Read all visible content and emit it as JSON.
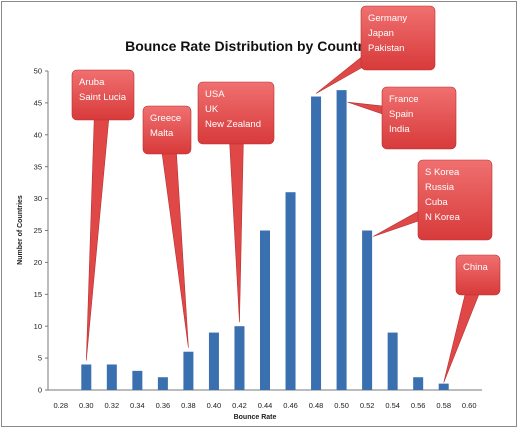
{
  "chart_data": {
    "type": "bar",
    "title": "Bounce Rate Distribution by Country",
    "xlabel": "Bounce Rate",
    "ylabel": "Number of Countries",
    "categories": [
      "0.28",
      "0.30",
      "0.32",
      "0.34",
      "0.36",
      "0.38",
      "0.40",
      "0.42",
      "0.44",
      "0.46",
      "0.48",
      "0.50",
      "0.52",
      "0.54",
      "0.56",
      "0.58",
      "0.60"
    ],
    "values": [
      0,
      4,
      4,
      3,
      2,
      6,
      9,
      10,
      25,
      31,
      46,
      47,
      25,
      9,
      2,
      1,
      0
    ],
    "ylim": [
      0,
      50
    ],
    "yticks": [
      0,
      5,
      10,
      15,
      20,
      25,
      30,
      35,
      40,
      45,
      50
    ],
    "grid": false,
    "bar_color": "#3a6fb0",
    "annotations": [
      {
        "lines": [
          "Aruba",
          "Saint Lucia"
        ],
        "category": "0.30"
      },
      {
        "lines": [
          "Greece",
          "Malta"
        ],
        "category": "0.38"
      },
      {
        "lines": [
          "USA",
          "UK",
          "New Zealand"
        ],
        "category": "0.42"
      },
      {
        "lines": [
          "Germany",
          "Japan",
          "Pakistan"
        ],
        "category": "0.48"
      },
      {
        "lines": [
          "France",
          "Spain",
          "India"
        ],
        "category": "0.50"
      },
      {
        "lines": [
          "S Korea",
          "Russia",
          "Cuba",
          "N Korea"
        ],
        "category": "0.52"
      },
      {
        "lines": [
          "China"
        ],
        "category": "0.58"
      }
    ],
    "callout_color": "#e04848"
  }
}
